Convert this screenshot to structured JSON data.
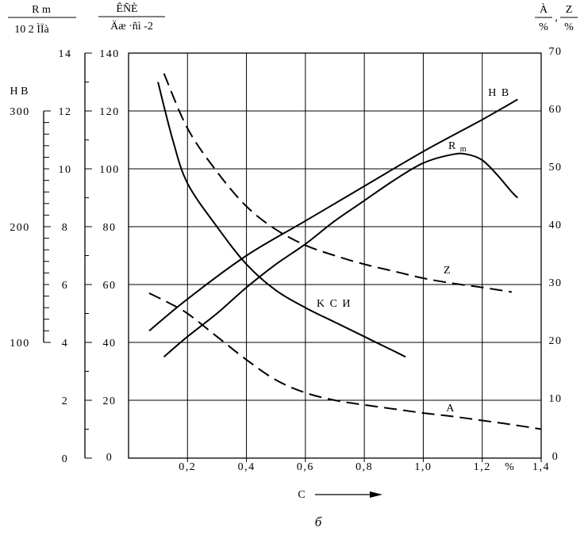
{
  "chart_data": {
    "type": "line",
    "xlabel": "C",
    "xunit": "%",
    "xlim": [
      0,
      1.4
    ],
    "x_ticks": [
      "0,2",
      "0,4",
      "0,6",
      "0,8",
      "1,0",
      "1,2",
      "1,4"
    ],
    "caption": "б",
    "grid": true,
    "axes": {
      "rm": {
        "label_top": "R m",
        "label_bottom": "10 2 ÌÏà",
        "ticks": [
          "0",
          "2",
          "4",
          "6",
          "8",
          "10",
          "12",
          "14"
        ],
        "ylim": [
          0,
          14
        ]
      },
      "ksi": {
        "label_top": "ÊÑÈ",
        "label_bottom": "Äæ ·ñì -2",
        "ticks": [
          "0",
          "20",
          "40",
          "60",
          "80",
          "100",
          "120",
          "140"
        ],
        "ylim": [
          0,
          140
        ]
      },
      "hb": {
        "label": "H B",
        "ticks": [
          "100",
          "200",
          "300"
        ],
        "ylim": [
          0,
          350
        ]
      },
      "az": {
        "label_a": "À",
        "label_z": "Z",
        "unit": "%",
        "ticks": [
          "0",
          "10",
          "20",
          "30",
          "40",
          "50",
          "60",
          "70"
        ],
        "ylim": [
          0,
          70
        ]
      }
    },
    "series": [
      {
        "name": "H B",
        "axis": "rm",
        "style": "solid",
        "x": [
          0.07,
          0.2,
          0.4,
          0.6,
          0.8,
          1.0,
          1.2,
          1.32
        ],
        "y": [
          4.4,
          5.5,
          7.0,
          8.2,
          9.4,
          10.6,
          11.7,
          12.4
        ]
      },
      {
        "name": "R m",
        "axis": "rm",
        "style": "solid",
        "x": [
          0.12,
          0.2,
          0.3,
          0.4,
          0.5,
          0.6,
          0.7,
          0.8,
          0.9,
          1.0,
          1.1,
          1.15,
          1.2,
          1.25,
          1.3,
          1.32
        ],
        "y": [
          3.5,
          4.2,
          5.0,
          5.9,
          6.7,
          7.4,
          8.2,
          8.9,
          9.6,
          10.2,
          10.5,
          10.5,
          10.3,
          9.8,
          9.2,
          9.0
        ]
      },
      {
        "name": "K C И",
        "axis": "ksi",
        "style": "solid",
        "x": [
          0.1,
          0.15,
          0.2,
          0.3,
          0.4,
          0.5,
          0.6,
          0.7,
          0.8,
          0.9,
          0.94
        ],
        "y": [
          130,
          110,
          95,
          80,
          67,
          58,
          52,
          47,
          42,
          37,
          35
        ]
      },
      {
        "name": "Z",
        "axis": "az",
        "style": "dashed",
        "x": [
          0.12,
          0.2,
          0.3,
          0.4,
          0.5,
          0.6,
          0.7,
          0.8,
          0.9,
          1.0,
          1.1,
          1.2,
          1.3
        ],
        "y": [
          66.5,
          57.0,
          49.5,
          43.5,
          39.5,
          36.8,
          35.0,
          33.5,
          32.3,
          31.1,
          30.2,
          29.5,
          28.7
        ]
      },
      {
        "name": "A",
        "axis": "az",
        "style": "dashed",
        "x": [
          0.07,
          0.13,
          0.2,
          0.3,
          0.4,
          0.5,
          0.6,
          0.7,
          0.8,
          0.9,
          1.0,
          1.1,
          1.2,
          1.3,
          1.4
        ],
        "y": [
          28.5,
          27.0,
          25.0,
          21.0,
          17.0,
          13.5,
          11.3,
          10.0,
          9.2,
          8.5,
          7.8,
          7.2,
          6.5,
          5.8,
          5.0
        ]
      }
    ]
  }
}
